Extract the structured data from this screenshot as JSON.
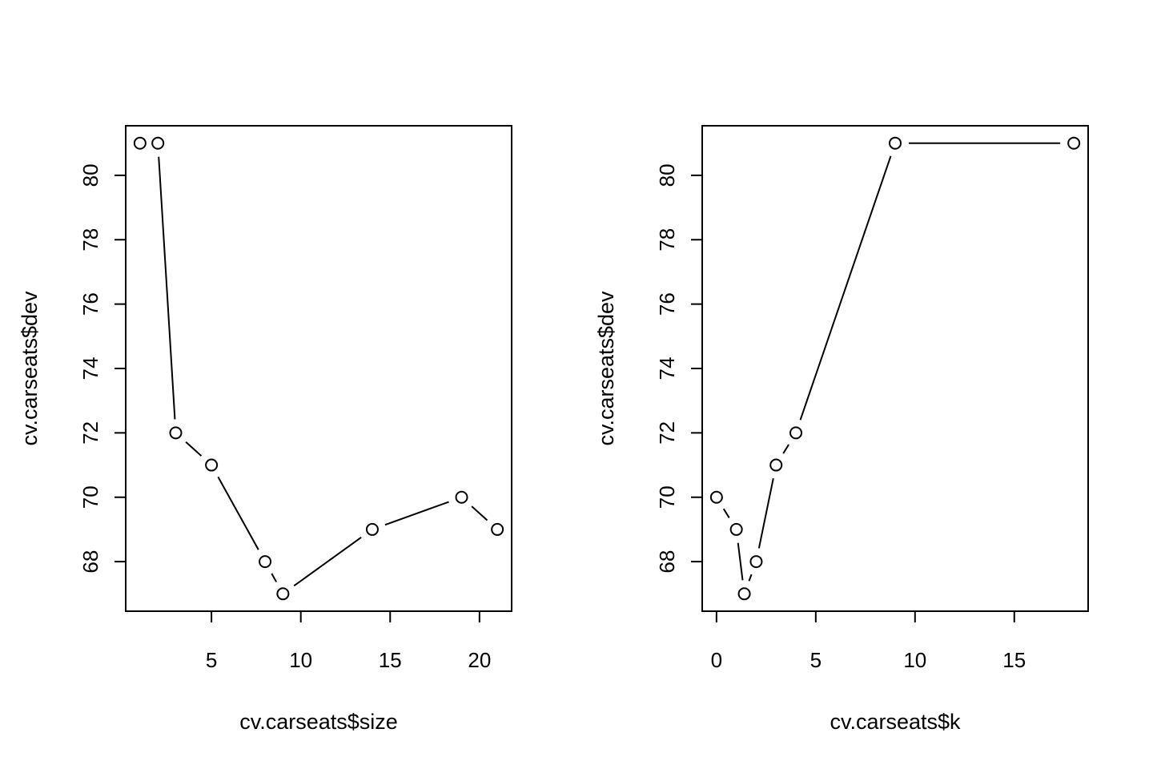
{
  "chart_data": [
    {
      "type": "line",
      "xlabel": "cv.carseats$size",
      "ylabel": "cv.carseats$dev",
      "x": [
        1,
        2,
        3,
        5,
        8,
        9,
        14,
        19,
        21
      ],
      "y": [
        81,
        81,
        72,
        71,
        68,
        67,
        69,
        70,
        69
      ],
      "xlim": [
        0.2,
        21.8
      ],
      "ylim": [
        66.46,
        81.54
      ],
      "xticks": [
        5,
        10,
        15,
        20
      ],
      "yticks": [
        68,
        70,
        72,
        74,
        76,
        78,
        80
      ],
      "xtick_labels": [
        "5",
        "10",
        "15",
        "20"
      ],
      "ytick_labels": [
        "68",
        "70",
        "72",
        "74",
        "76",
        "78",
        "80"
      ],
      "markers": "open-circle",
      "grid": false
    },
    {
      "type": "line",
      "xlabel": "cv.carseats$k",
      "ylabel": "cv.carseats$dev",
      "x": [
        0,
        1,
        1.4,
        2,
        3,
        4,
        9,
        18
      ],
      "y": [
        70,
        69,
        67,
        68,
        71,
        72,
        81,
        81
      ],
      "xlim": [
        -0.72,
        18.72
      ],
      "ylim": [
        66.46,
        81.54
      ],
      "xticks": [
        0,
        5,
        10,
        15
      ],
      "yticks": [
        68,
        70,
        72,
        74,
        76,
        78,
        80
      ],
      "xtick_labels": [
        "0",
        "5",
        "10",
        "15"
      ],
      "ytick_labels": [
        "68",
        "70",
        "72",
        "74",
        "76",
        "78",
        "80"
      ],
      "markers": "open-circle",
      "grid": false
    }
  ]
}
